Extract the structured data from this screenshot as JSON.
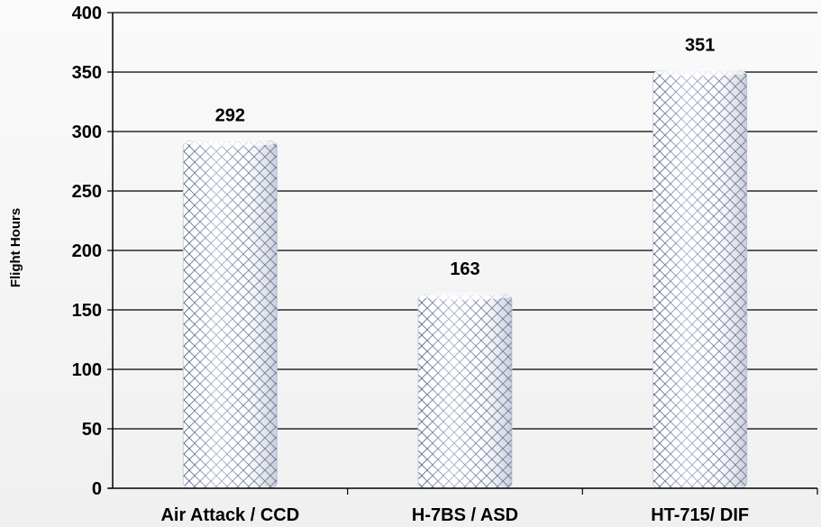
{
  "chart_data": {
    "type": "bar",
    "title": "",
    "xlabel": "",
    "ylabel": "Flight Hours",
    "categories": [
      "Air Attack / CCD",
      "H-7BS / ASD",
      "HT-715/ DIF"
    ],
    "values": [
      292,
      163,
      351
    ],
    "data_labels": [
      "292",
      "163",
      "351"
    ],
    "ylim": [
      0,
      400
    ],
    "yticks": [
      0,
      50,
      100,
      150,
      200,
      250,
      300,
      350,
      400
    ],
    "grid": true,
    "legend": "none",
    "colors": {
      "bar_pattern_fg": "#2b3f73",
      "bar_fill": "#e9edf6",
      "grid": "#000000",
      "background": "#f4f4f4"
    }
  }
}
